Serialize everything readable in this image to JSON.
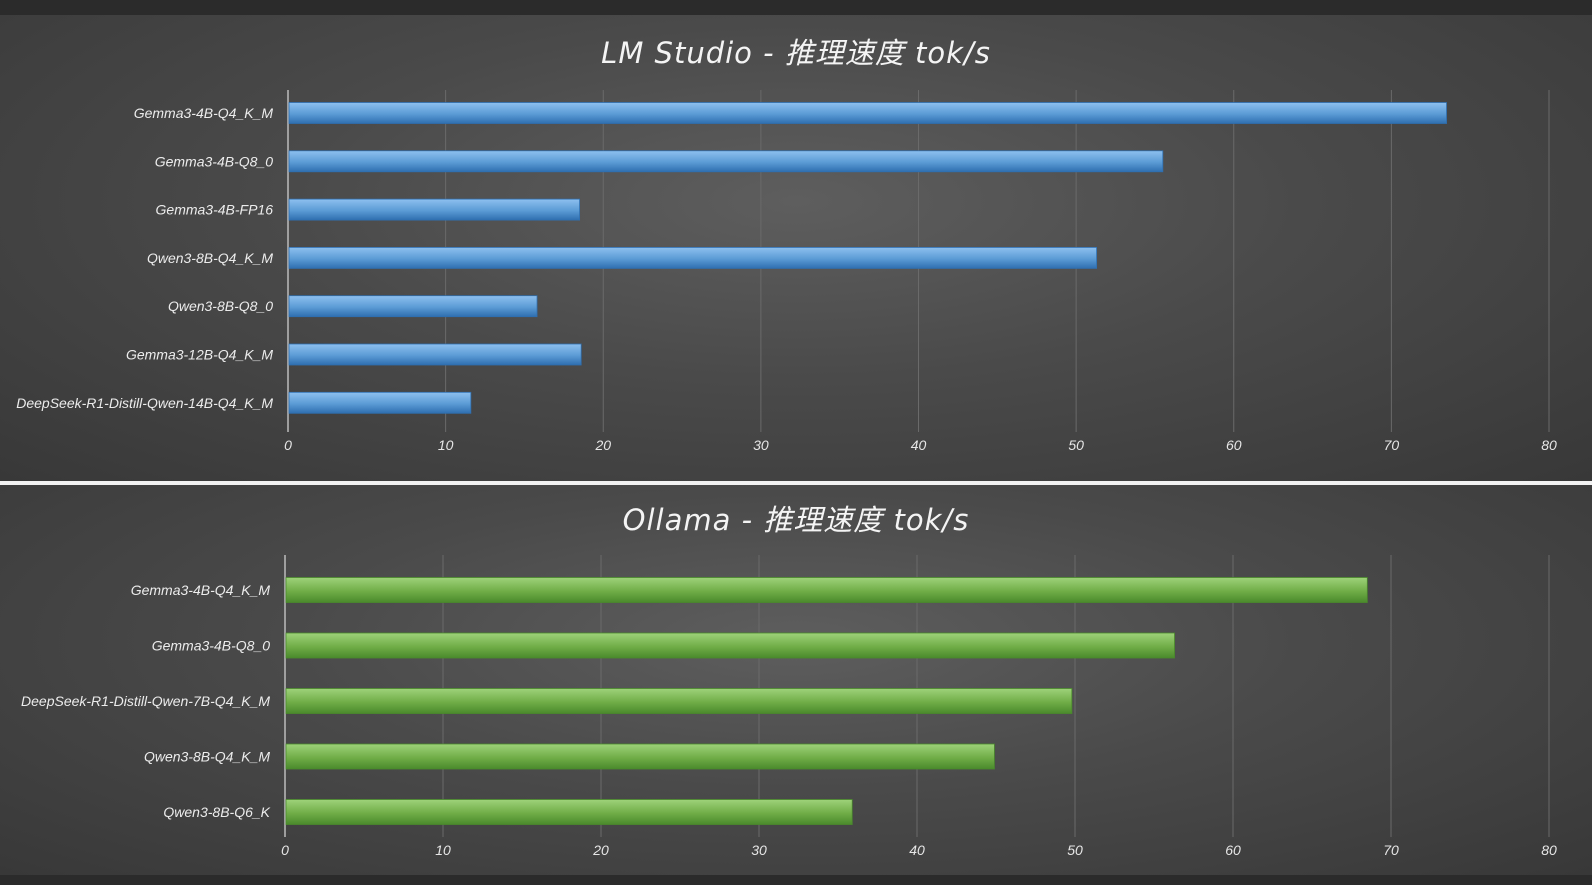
{
  "chart_data": [
    {
      "type": "bar",
      "orientation": "horizontal",
      "title": "LM Studio - 推理速度 tok/s",
      "categories": [
        "Gemma3-4B-Q4_K_M",
        "Gemma3-4B-Q8_0",
        "Gemma3-4B-FP16",
        "Qwen3-8B-Q4_K_M",
        "Qwen3-8B-Q8_0",
        "Gemma3-12B-Q4_K_M",
        "DeepSeek-R1-Distill-Qwen-14B-Q4_K_M"
      ],
      "values": [
        73.5,
        55.5,
        18.5,
        51.3,
        15.8,
        18.6,
        11.6
      ],
      "xlim": [
        0,
        80
      ],
      "ticks": [
        0,
        10,
        20,
        30,
        40,
        50,
        60,
        70,
        80
      ],
      "grid": true,
      "bar_color": "#5b9bd5"
    },
    {
      "type": "bar",
      "orientation": "horizontal",
      "title": "Ollama - 推理速度 tok/s",
      "categories": [
        "Gemma3-4B-Q4_K_M",
        "Gemma3-4B-Q8_0",
        "DeepSeek-R1-Distill-Qwen-7B-Q4_K_M",
        "Qwen3-8B-Q4_K_M",
        "Qwen3-8B-Q6_K"
      ],
      "values": [
        68.5,
        56.3,
        49.8,
        44.9,
        35.9
      ],
      "xlim": [
        0,
        80
      ],
      "ticks": [
        0,
        10,
        20,
        30,
        40,
        50,
        60,
        70,
        80
      ],
      "grid": true,
      "bar_color": "#70ad47"
    }
  ]
}
